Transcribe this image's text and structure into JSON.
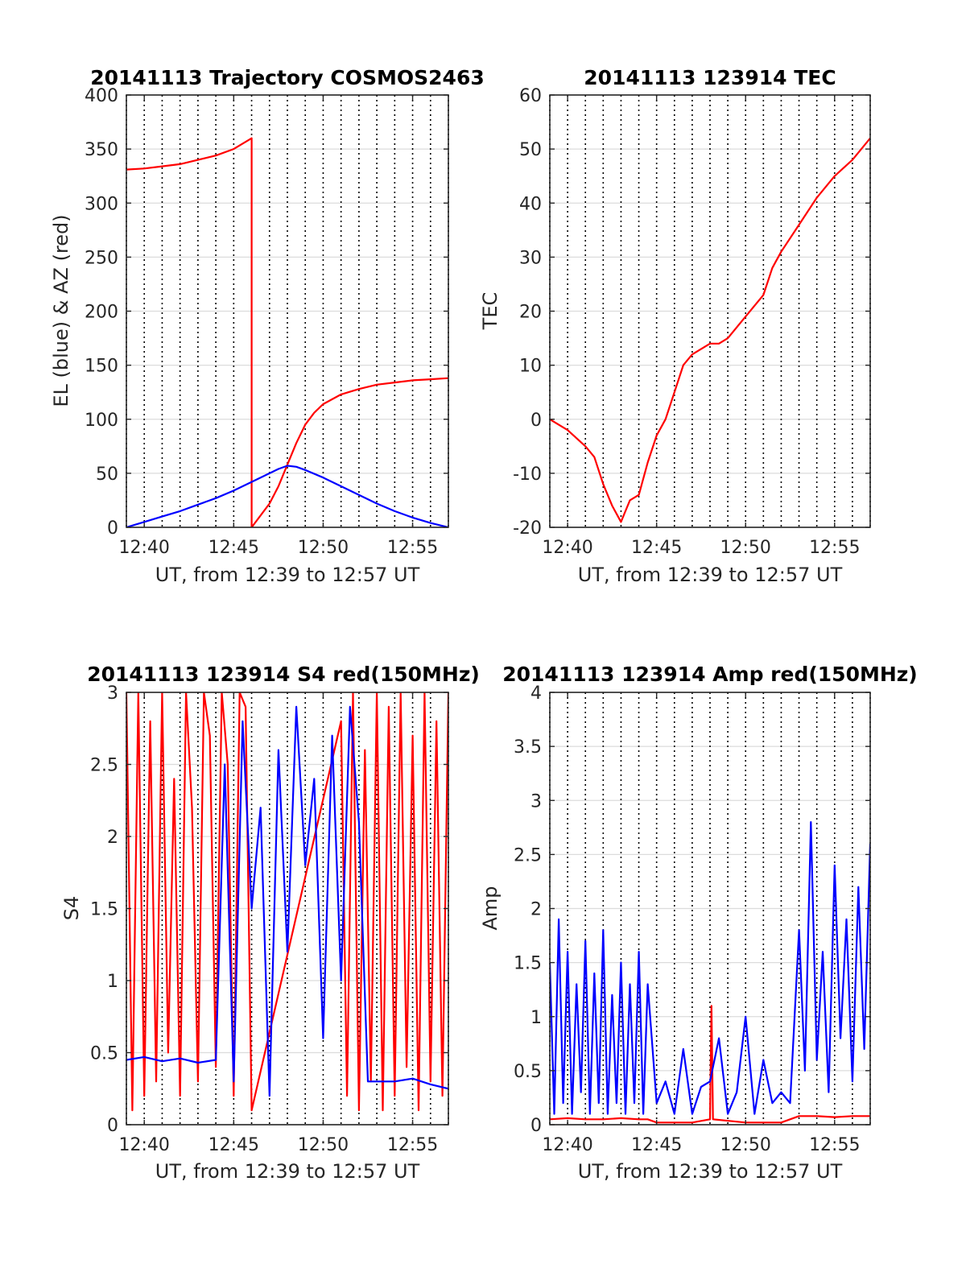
{
  "colors": {
    "red": "#ff0000",
    "blue": "#0000ff",
    "grid": "#dcdcdc",
    "axis": "#262626"
  },
  "chart_data": [
    {
      "id": "trajectory",
      "type": "line",
      "title": "20141113 Trajectory COSMOS2463",
      "xlabel": "UT, from 12:39 to 12:57 UT",
      "ylabel": "EL (blue) & AZ (red)",
      "xlim": [
        "12:39",
        "12:57"
      ],
      "ylim": [
        0,
        400
      ],
      "xticks": [
        "12:40",
        "12:45",
        "12:50",
        "12:55"
      ],
      "yticks": [
        "0",
        "50",
        "100",
        "150",
        "200",
        "250",
        "300",
        "350",
        "400"
      ],
      "grid": true,
      "series": [
        {
          "color": "red",
          "x": [
            "12:39",
            "12:40",
            "12:41",
            "12:42",
            "12:43",
            "12:44",
            "12:45",
            "12:46",
            "12:46",
            "12:47",
            "12:47:30",
            "12:48",
            "12:48:30",
            "12:49",
            "12:49:30",
            "12:50",
            "12:51",
            "12:52",
            "12:53",
            "12:54",
            "12:55",
            "12:56",
            "12:57"
          ],
          "y": [
            331,
            332,
            334,
            336,
            340,
            344,
            350,
            360,
            0,
            22,
            38,
            58,
            78,
            95,
            106,
            114,
            123,
            128,
            132,
            134,
            136,
            137,
            138
          ]
        },
        {
          "color": "blue",
          "x": [
            "12:39",
            "12:40",
            "12:41",
            "12:42",
            "12:43",
            "12:44",
            "12:45",
            "12:46",
            "12:47",
            "12:47:30",
            "12:48",
            "12:48:30",
            "12:49",
            "12:50",
            "12:51",
            "12:52",
            "12:53",
            "12:54",
            "12:55",
            "12:56",
            "12:57"
          ],
          "y": [
            0,
            5,
            10,
            15,
            21,
            27,
            34,
            42,
            50,
            54,
            57,
            56,
            53,
            46,
            38,
            30,
            22,
            15,
            9,
            4,
            0
          ]
        }
      ]
    },
    {
      "id": "tec",
      "type": "line",
      "title": "20141113 123914 TEC",
      "xlabel": "UT, from 12:39 to 12:57 UT",
      "ylabel": "TEC",
      "xlim": [
        "12:39",
        "12:57"
      ],
      "ylim": [
        -20,
        60
      ],
      "xticks": [
        "12:40",
        "12:45",
        "12:50",
        "12:55"
      ],
      "yticks": [
        "-20",
        "-10",
        "0",
        "10",
        "20",
        "30",
        "40",
        "50",
        "60"
      ],
      "grid": true,
      "series": [
        {
          "color": "red",
          "x": [
            "12:39",
            "12:40",
            "12:41",
            "12:41:30",
            "12:42",
            "12:42:30",
            "12:43",
            "12:43:30",
            "12:44",
            "12:44:30",
            "12:45",
            "12:45:30",
            "12:46",
            "12:46:30",
            "12:47",
            "12:48",
            "12:48:30",
            "12:49",
            "12:49:30",
            "12:50",
            "12:51",
            "12:51:30",
            "12:52",
            "12:53",
            "12:54",
            "12:55",
            "12:56",
            "12:57"
          ],
          "y": [
            0,
            -2,
            -5,
            -7,
            -12,
            -16,
            -19,
            -15,
            -14,
            -8,
            -3,
            0,
            5,
            10,
            12,
            14,
            14,
            15,
            17,
            19,
            23,
            28,
            31,
            36,
            41,
            45,
            48,
            52
          ]
        }
      ]
    },
    {
      "id": "s4",
      "type": "line",
      "title": "20141113 123914 S4 red(150MHz)",
      "xlabel": "UT, from 12:39 to 12:57 UT",
      "ylabel": "S4",
      "xlim": [
        "12:39",
        "12:57"
      ],
      "ylim": [
        0,
        3
      ],
      "xticks": [
        "12:40",
        "12:45",
        "12:50",
        "12:55"
      ],
      "yticks": [
        "0",
        "0.5",
        "1",
        "1.5",
        "2",
        "2.5",
        "3"
      ],
      "grid": true,
      "series": [
        {
          "color": "red",
          "x": [
            "12:39",
            "12:39:20",
            "12:39:40",
            "12:40",
            "12:40:20",
            "12:40:40",
            "12:41",
            "12:41:20",
            "12:41:40",
            "12:42",
            "12:42:20",
            "12:42:40",
            "12:43",
            "12:43:20",
            "12:43:40",
            "12:44",
            "12:44:20",
            "12:44:40",
            "12:45",
            "12:45:20",
            "12:45:40",
            "12:46",
            "12:51",
            "12:51:20",
            "12:51:40",
            "12:52",
            "12:52:20",
            "12:52:40",
            "12:53",
            "12:53:20",
            "12:53:40",
            "12:54",
            "12:54:20",
            "12:54:40",
            "12:55",
            "12:55:20",
            "12:55:40",
            "12:56",
            "12:56:20",
            "12:56:40",
            "12:57"
          ],
          "y": [
            3,
            0.1,
            3,
            0.2,
            2.8,
            0.3,
            3,
            0.5,
            2.4,
            0.2,
            3,
            2.2,
            0.3,
            3,
            2.7,
            0.4,
            3,
            2.5,
            0.2,
            3,
            2.9,
            0.1,
            2.8,
            0.2,
            3,
            0.1,
            2.6,
            0.3,
            3,
            0.1,
            2.9,
            0.2,
            3,
            0.4,
            2.7,
            0.1,
            3,
            0.3,
            2.8,
            0.2,
            3
          ]
        },
        {
          "color": "blue",
          "x": [
            "12:39",
            "12:40",
            "12:41",
            "12:42",
            "12:43",
            "12:44",
            "12:44:30",
            "12:45",
            "12:45:30",
            "12:46",
            "12:46:30",
            "12:47",
            "12:47:30",
            "12:48",
            "12:48:30",
            "12:49",
            "12:49:30",
            "12:50",
            "12:50:30",
            "12:51",
            "12:51:30",
            "12:52",
            "12:52:30",
            "12:53",
            "12:54",
            "12:55",
            "12:56",
            "12:57"
          ],
          "y": [
            0.45,
            0.47,
            0.44,
            0.46,
            0.43,
            0.45,
            2.5,
            0.3,
            2.8,
            1.5,
            2.2,
            0.2,
            2.6,
            1.2,
            2.9,
            1.8,
            2.4,
            0.6,
            2.7,
            1.0,
            2.9,
            2.1,
            0.3,
            0.3,
            0.3,
            0.32,
            0.28,
            0.25
          ]
        }
      ]
    },
    {
      "id": "amp",
      "type": "line",
      "title": "20141113 123914 Amp red(150MHz)",
      "xlabel": "UT, from 12:39 to 12:57 UT",
      "ylabel": "Amp",
      "xlim": [
        "12:39",
        "12:57"
      ],
      "ylim": [
        0,
        4
      ],
      "xticks": [
        "12:40",
        "12:45",
        "12:50",
        "12:55"
      ],
      "yticks": [
        "0",
        "0.5",
        "1",
        "1.5",
        "2",
        "2.5",
        "3",
        "3.5",
        "4"
      ],
      "grid": true,
      "series": [
        {
          "color": "red",
          "x": [
            "12:39",
            "12:40",
            "12:41",
            "12:42",
            "12:43",
            "12:44",
            "12:44:30",
            "12:45",
            "12:47",
            "12:48",
            "12:48:05",
            "12:48:10",
            "12:50",
            "12:52",
            "12:53",
            "12:54",
            "12:55",
            "12:56",
            "12:57"
          ],
          "y": [
            0.05,
            0.06,
            0.05,
            0.05,
            0.06,
            0.05,
            0.05,
            0.02,
            0.02,
            0.05,
            1.1,
            0.05,
            0.02,
            0.02,
            0.08,
            0.08,
            0.07,
            0.08,
            0.08
          ]
        },
        {
          "color": "blue",
          "x": [
            "12:39",
            "12:39:15",
            "12:39:30",
            "12:39:45",
            "12:40",
            "12:40:15",
            "12:40:30",
            "12:40:45",
            "12:41",
            "12:41:15",
            "12:41:30",
            "12:41:45",
            "12:42",
            "12:42:15",
            "12:42:30",
            "12:42:45",
            "12:43",
            "12:43:15",
            "12:43:30",
            "12:43:45",
            "12:44",
            "12:44:15",
            "12:44:30",
            "12:45",
            "12:45:30",
            "12:46",
            "12:46:30",
            "12:47",
            "12:47:30",
            "12:48",
            "12:48:30",
            "12:49",
            "12:49:30",
            "12:50",
            "12:50:30",
            "12:51",
            "12:51:30",
            "12:52",
            "12:52:30",
            "12:53",
            "12:53:20",
            "12:53:40",
            "12:54",
            "12:54:20",
            "12:54:40",
            "12:55",
            "12:55:20",
            "12:55:40",
            "12:56",
            "12:56:20",
            "12:56:40",
            "12:57"
          ],
          "y": [
            1.5,
            0.1,
            1.9,
            0.2,
            1.6,
            0.1,
            1.3,
            0.3,
            1.7,
            0.1,
            1.4,
            0.2,
            1.8,
            0.1,
            1.2,
            0.2,
            1.5,
            0.1,
            1.3,
            0.2,
            1.6,
            0.1,
            1.3,
            0.2,
            0.4,
            0.1,
            0.7,
            0.1,
            0.35,
            0.4,
            0.8,
            0.1,
            0.3,
            1.0,
            0.1,
            0.6,
            0.2,
            0.3,
            0.2,
            1.8,
            0.5,
            2.8,
            0.6,
            1.6,
            0.3,
            2.4,
            0.8,
            1.9,
            0.4,
            2.2,
            0.7,
            2.6
          ]
        }
      ]
    }
  ]
}
